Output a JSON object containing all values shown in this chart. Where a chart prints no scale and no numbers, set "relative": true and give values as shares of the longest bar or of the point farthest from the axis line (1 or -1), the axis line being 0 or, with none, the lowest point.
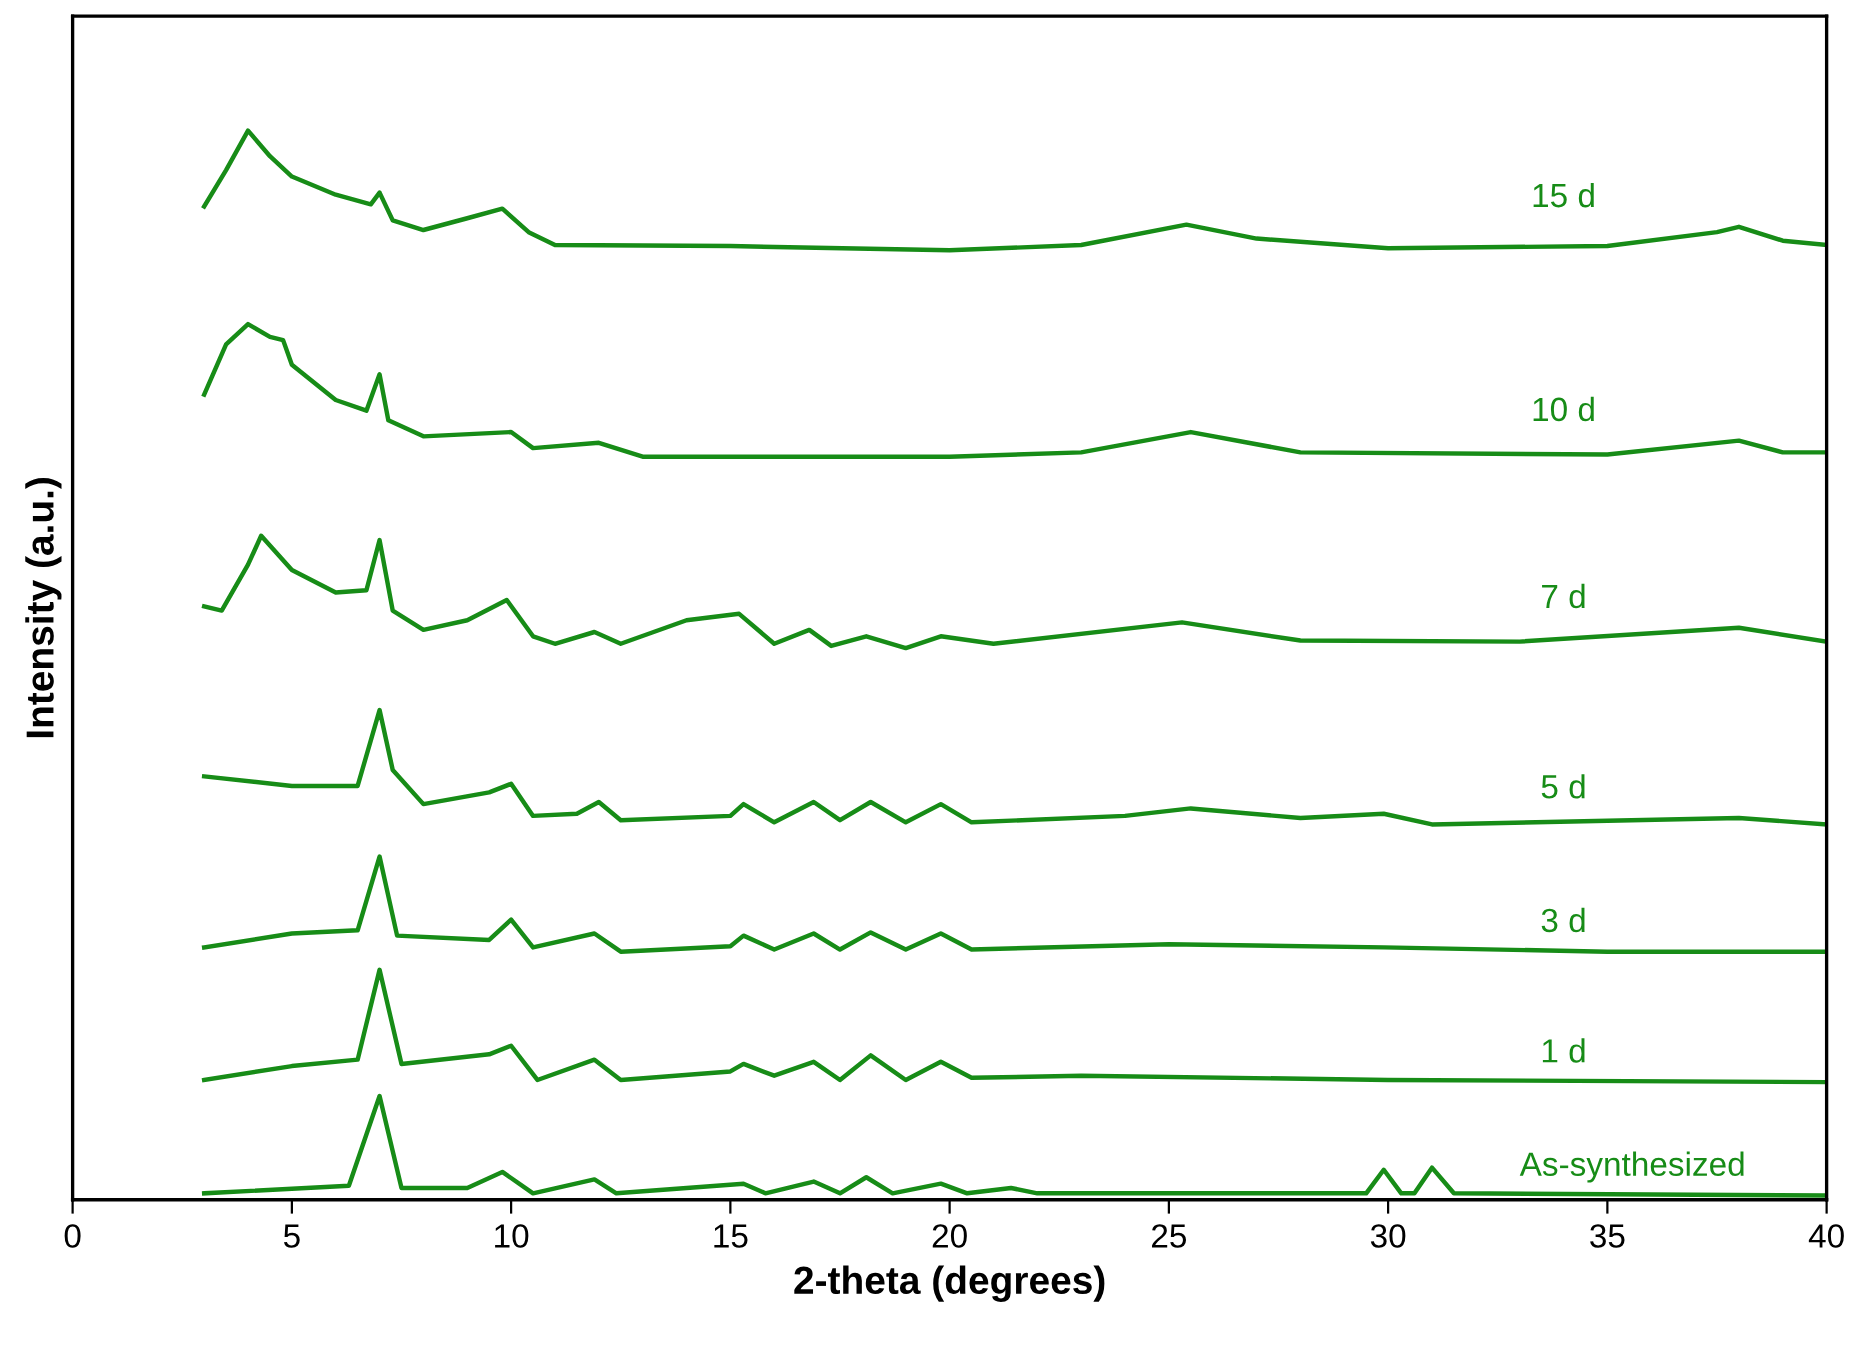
{
  "chart_data": {
    "type": "line",
    "relative": true,
    "xlabel": "2-theta (degrees)",
    "ylabel": "Intensity (a.u.)",
    "xlim": [
      0,
      40
    ],
    "xticks": [
      0,
      5,
      10,
      15,
      20,
      25,
      30,
      35,
      40
    ],
    "grid": false,
    "legend": false,
    "marker": "none",
    "line_style": "solid",
    "tick_labels": "x",
    "series": [
      {
        "name": "15 d",
        "color": "#178c17",
        "x": [
          3,
          3.5,
          4,
          4.5,
          5,
          6,
          6.8,
          7,
          7.3,
          8,
          9,
          9.8,
          10.4,
          11,
          15,
          20,
          23,
          25.4,
          27,
          30,
          35,
          37.5,
          38,
          39,
          40
        ],
        "values": [
          0.929,
          0.963,
          1.0,
          0.976,
          0.957,
          0.94,
          0.931,
          0.942,
          0.916,
          0.907,
          0.918,
          0.927,
          0.905,
          0.893,
          0.892,
          0.888,
          0.893,
          0.912,
          0.899,
          0.89,
          0.892,
          0.905,
          0.91,
          0.897,
          0.893
        ]
      },
      {
        "name": "10 d",
        "color": "#178c17",
        "x": [
          3,
          3.5,
          4,
          4.5,
          4.8,
          5,
          6,
          6.7,
          7,
          7.2,
          8,
          10,
          10.5,
          12,
          13,
          20,
          23,
          25.5,
          28,
          35,
          38,
          39,
          40
        ],
        "values": [
          0.753,
          0.8,
          0.819,
          0.807,
          0.804,
          0.781,
          0.748,
          0.738,
          0.772,
          0.729,
          0.714,
          0.718,
          0.703,
          0.708,
          0.695,
          0.695,
          0.699,
          0.718,
          0.699,
          0.697,
          0.71,
          0.699,
          0.699
        ]
      },
      {
        "name": "7 d",
        "color": "#178c17",
        "x": [
          3,
          3.4,
          4,
          4.3,
          5,
          6,
          6.7,
          7,
          7.3,
          8,
          9,
          9.9,
          10.5,
          11,
          11.9,
          12.5,
          14,
          15.2,
          16,
          16.8,
          17.3,
          18.1,
          19,
          19.8,
          21,
          25.3,
          28,
          33,
          38,
          40
        ],
        "values": [
          0.555,
          0.551,
          0.594,
          0.621,
          0.589,
          0.568,
          0.57,
          0.617,
          0.551,
          0.533,
          0.542,
          0.561,
          0.527,
          0.52,
          0.531,
          0.52,
          0.542,
          0.548,
          0.52,
          0.533,
          0.518,
          0.527,
          0.516,
          0.527,
          0.52,
          0.54,
          0.523,
          0.522,
          0.535,
          0.522
        ]
      },
      {
        "name": "5 d",
        "color": "#178c17",
        "x": [
          3,
          5,
          6.5,
          7,
          7.3,
          8,
          9.5,
          10,
          10.5,
          11.5,
          12,
          12.5,
          15,
          15.3,
          16,
          16.9,
          17.5,
          18.2,
          19,
          19.8,
          20.5,
          24,
          25.5,
          28,
          29.9,
          31,
          38,
          40
        ],
        "values": [
          0.396,
          0.387,
          0.387,
          0.458,
          0.402,
          0.37,
          0.381,
          0.389,
          0.359,
          0.361,
          0.372,
          0.355,
          0.359,
          0.37,
          0.353,
          0.372,
          0.355,
          0.372,
          0.353,
          0.37,
          0.353,
          0.359,
          0.366,
          0.357,
          0.361,
          0.351,
          0.357,
          0.351
        ]
      },
      {
        "name": "3 d",
        "color": "#178c17",
        "x": [
          3,
          5,
          6.5,
          7,
          7.4,
          9.5,
          10,
          10.5,
          11.9,
          12.5,
          15,
          15.3,
          16,
          16.9,
          17.5,
          18.2,
          19,
          19.8,
          20.5,
          25,
          29.9,
          35,
          40
        ],
        "values": [
          0.236,
          0.249,
          0.252,
          0.321,
          0.247,
          0.243,
          0.262,
          0.236,
          0.249,
          0.232,
          0.237,
          0.247,
          0.234,
          0.249,
          0.234,
          0.25,
          0.234,
          0.249,
          0.234,
          0.239,
          0.236,
          0.232,
          0.232
        ]
      },
      {
        "name": "1 d",
        "color": "#178c17",
        "x": [
          3,
          5,
          6.5,
          7,
          7.5,
          9.5,
          10,
          10.6,
          11.9,
          12.5,
          15,
          15.3,
          16,
          16.9,
          17.5,
          18.2,
          19,
          19.8,
          20.5,
          23,
          30,
          40
        ],
        "values": [
          0.112,
          0.125,
          0.131,
          0.215,
          0.127,
          0.136,
          0.144,
          0.112,
          0.131,
          0.112,
          0.12,
          0.127,
          0.116,
          0.129,
          0.112,
          0.135,
          0.112,
          0.129,
          0.114,
          0.116,
          0.112,
          0.11
        ]
      },
      {
        "name": "As-synthesized",
        "color": "#178c17",
        "x": [
          3,
          6.3,
          7,
          7.5,
          9,
          9.8,
          10.5,
          11.9,
          12.4,
          15.3,
          15.8,
          16.9,
          17.5,
          18.1,
          18.7,
          19.8,
          20.4,
          21.4,
          22,
          29.5,
          29.9,
          30.3,
          30.6,
          31,
          31.5,
          40
        ],
        "values": [
          0.006,
          0.013,
          0.097,
          0.011,
          0.011,
          0.026,
          0.006,
          0.019,
          0.006,
          0.015,
          0.006,
          0.017,
          0.006,
          0.021,
          0.006,
          0.015,
          0.006,
          0.011,
          0.006,
          0.006,
          0.028,
          0.006,
          0.006,
          0.03,
          0.006,
          0.004
        ]
      }
    ]
  }
}
